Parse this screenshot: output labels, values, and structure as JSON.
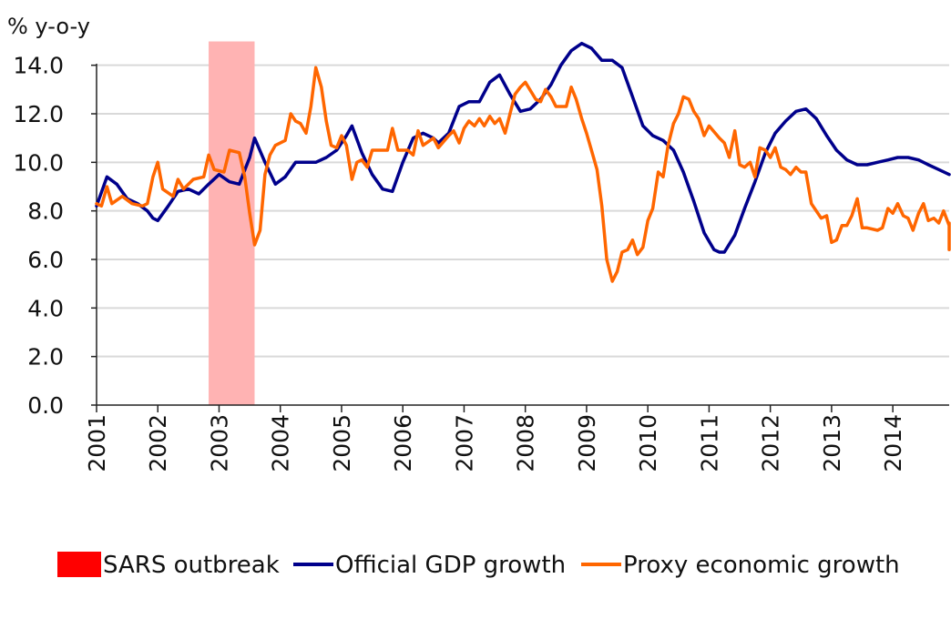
{
  "chart_data": {
    "type": "line",
    "ylabel": "% y-o-y",
    "ylim": [
      0,
      15
    ],
    "yticks": [
      0,
      2,
      4,
      6,
      8,
      10,
      12,
      14
    ],
    "ytick_labels": [
      "0.0",
      "2.0",
      "4.0",
      "6.0",
      "8.0",
      "10.0",
      "12.0",
      "14.0"
    ],
    "xlim": [
      2001,
      2014.92
    ],
    "xticks": [
      2001,
      2002,
      2003,
      2004,
      2005,
      2006,
      2007,
      2008,
      2009,
      2010,
      2011,
      2012,
      2013,
      2014
    ],
    "xtick_labels": [
      "2001",
      "2002",
      "2003",
      "2004",
      "2005",
      "2006",
      "2007",
      "2008",
      "2009",
      "2010",
      "2011",
      "2012",
      "2013",
      "2014"
    ],
    "grid": true,
    "legend_position": "bottom",
    "shaded_regions": [
      {
        "name": "SARS outbreak",
        "x_start": 2002.83,
        "x_end": 2003.58,
        "color": "#ffb3b3",
        "legend_color": "#ff0000"
      }
    ],
    "series": [
      {
        "name": "Official GDP growth",
        "color": "#00008b",
        "points": [
          [
            2001.0,
            8.2
          ],
          [
            2001.17,
            9.4
          ],
          [
            2001.33,
            9.1
          ],
          [
            2001.5,
            8.5
          ],
          [
            2001.67,
            8.3
          ],
          [
            2001.83,
            8.0
          ],
          [
            2001.92,
            7.7
          ],
          [
            2002.0,
            7.6
          ],
          [
            2002.17,
            8.2
          ],
          [
            2002.33,
            8.8
          ],
          [
            2002.5,
            8.9
          ],
          [
            2002.67,
            8.7
          ],
          [
            2002.83,
            9.1
          ],
          [
            2003.0,
            9.5
          ],
          [
            2003.17,
            9.2
          ],
          [
            2003.33,
            9.1
          ],
          [
            2003.5,
            10.2
          ],
          [
            2003.58,
            11.0
          ],
          [
            2003.75,
            10.0
          ],
          [
            2003.92,
            9.1
          ],
          [
            2004.08,
            9.4
          ],
          [
            2004.25,
            10.0
          ],
          [
            2004.42,
            10.0
          ],
          [
            2004.58,
            10.0
          ],
          [
            2004.75,
            10.2
          ],
          [
            2004.92,
            10.5
          ],
          [
            2005.08,
            11.1
          ],
          [
            2005.17,
            11.5
          ],
          [
            2005.33,
            10.4
          ],
          [
            2005.5,
            9.5
          ],
          [
            2005.67,
            8.9
          ],
          [
            2005.83,
            8.8
          ],
          [
            2006.0,
            10.0
          ],
          [
            2006.17,
            11.0
          ],
          [
            2006.33,
            11.2
          ],
          [
            2006.5,
            11.0
          ],
          [
            2006.58,
            10.8
          ],
          [
            2006.75,
            11.2
          ],
          [
            2006.92,
            12.3
          ],
          [
            2007.08,
            12.5
          ],
          [
            2007.25,
            12.5
          ],
          [
            2007.42,
            13.3
          ],
          [
            2007.58,
            13.6
          ],
          [
            2007.75,
            12.8
          ],
          [
            2007.92,
            12.1
          ],
          [
            2008.08,
            12.2
          ],
          [
            2008.25,
            12.6
          ],
          [
            2008.42,
            13.2
          ],
          [
            2008.58,
            14.0
          ],
          [
            2008.75,
            14.6
          ],
          [
            2008.92,
            14.9
          ],
          [
            2009.08,
            14.7
          ],
          [
            2009.25,
            14.2
          ],
          [
            2009.42,
            14.2
          ],
          [
            2009.58,
            13.9
          ],
          [
            2009.75,
            12.7
          ],
          [
            2009.92,
            11.5
          ],
          [
            2010.08,
            11.1
          ],
          [
            2010.25,
            10.9
          ],
          [
            2010.42,
            10.5
          ],
          [
            2010.58,
            9.6
          ],
          [
            2010.75,
            8.4
          ],
          [
            2010.92,
            7.1
          ],
          [
            2011.08,
            6.4
          ],
          [
            2011.17,
            6.3
          ],
          [
            2011.25,
            6.3
          ],
          [
            2011.42,
            7.0
          ],
          [
            2011.58,
            8.1
          ],
          [
            2011.75,
            9.2
          ],
          [
            2011.92,
            10.4
          ],
          [
            2012.08,
            11.2
          ],
          [
            2012.25,
            11.7
          ],
          [
            2012.42,
            12.1
          ],
          [
            2012.58,
            12.2
          ],
          [
            2012.75,
            11.8
          ],
          [
            2012.92,
            11.1
          ],
          [
            2013.08,
            10.5
          ],
          [
            2013.25,
            10.1
          ],
          [
            2013.42,
            9.9
          ],
          [
            2013.58,
            9.9
          ],
          [
            2013.75,
            10.0
          ],
          [
            2013.92,
            10.1
          ],
          [
            2014.08,
            10.2
          ],
          [
            2014.25,
            10.2
          ],
          [
            2014.42,
            10.1
          ],
          [
            2014.58,
            9.9
          ],
          [
            2014.75,
            9.7
          ],
          [
            2014.92,
            9.5
          ]
        ]
      },
      {
        "name": "Proxy economic growth",
        "color": "#ff6600",
        "points": [
          [
            2001.0,
            8.3
          ],
          [
            2001.08,
            8.2
          ],
          [
            2001.17,
            9.0
          ],
          [
            2001.25,
            8.3
          ],
          [
            2001.42,
            8.6
          ],
          [
            2001.58,
            8.3
          ],
          [
            2001.75,
            8.2
          ],
          [
            2001.83,
            8.3
          ],
          [
            2001.92,
            9.4
          ],
          [
            2002.0,
            10.0
          ],
          [
            2002.08,
            8.9
          ],
          [
            2002.25,
            8.6
          ],
          [
            2002.33,
            9.3
          ],
          [
            2002.42,
            8.9
          ],
          [
            2002.58,
            9.3
          ],
          [
            2002.75,
            9.4
          ],
          [
            2002.83,
            10.3
          ],
          [
            2002.92,
            9.7
          ],
          [
            2003.08,
            9.6
          ],
          [
            2003.17,
            10.5
          ],
          [
            2003.33,
            10.4
          ],
          [
            2003.42,
            9.4
          ],
          [
            2003.5,
            7.9
          ],
          [
            2003.58,
            6.6
          ],
          [
            2003.67,
            7.2
          ],
          [
            2003.75,
            9.5
          ],
          [
            2003.83,
            10.3
          ],
          [
            2003.92,
            10.7
          ],
          [
            2004.08,
            10.9
          ],
          [
            2004.17,
            12.0
          ],
          [
            2004.25,
            11.7
          ],
          [
            2004.33,
            11.6
          ],
          [
            2004.42,
            11.2
          ],
          [
            2004.5,
            12.3
          ],
          [
            2004.58,
            13.9
          ],
          [
            2004.67,
            13.1
          ],
          [
            2004.75,
            11.7
          ],
          [
            2004.83,
            10.7
          ],
          [
            2004.92,
            10.6
          ],
          [
            2005.0,
            11.1
          ],
          [
            2005.08,
            10.7
          ],
          [
            2005.17,
            9.3
          ],
          [
            2005.25,
            10.0
          ],
          [
            2005.33,
            10.1
          ],
          [
            2005.42,
            9.8
          ],
          [
            2005.5,
            10.5
          ],
          [
            2005.67,
            10.5
          ],
          [
            2005.75,
            10.5
          ],
          [
            2005.83,
            11.4
          ],
          [
            2005.92,
            10.5
          ],
          [
            2006.08,
            10.5
          ],
          [
            2006.17,
            10.3
          ],
          [
            2006.25,
            11.3
          ],
          [
            2006.33,
            10.7
          ],
          [
            2006.5,
            11.0
          ],
          [
            2006.58,
            10.6
          ],
          [
            2006.75,
            11.1
          ],
          [
            2006.83,
            11.3
          ],
          [
            2006.92,
            10.8
          ],
          [
            2007.0,
            11.4
          ],
          [
            2007.08,
            11.7
          ],
          [
            2007.17,
            11.5
          ],
          [
            2007.25,
            11.8
          ],
          [
            2007.33,
            11.5
          ],
          [
            2007.42,
            11.9
          ],
          [
            2007.5,
            11.6
          ],
          [
            2007.58,
            11.8
          ],
          [
            2007.67,
            11.2
          ],
          [
            2007.75,
            12.0
          ],
          [
            2007.83,
            12.8
          ],
          [
            2007.92,
            13.1
          ],
          [
            2008.0,
            13.3
          ],
          [
            2008.17,
            12.6
          ],
          [
            2008.25,
            12.5
          ],
          [
            2008.33,
            13.0
          ],
          [
            2008.42,
            12.7
          ],
          [
            2008.5,
            12.3
          ],
          [
            2008.58,
            12.3
          ],
          [
            2008.67,
            12.3
          ],
          [
            2008.75,
            13.1
          ],
          [
            2008.83,
            12.6
          ],
          [
            2008.92,
            11.8
          ],
          [
            2009.0,
            11.2
          ],
          [
            2009.08,
            10.5
          ],
          [
            2009.17,
            9.7
          ],
          [
            2009.25,
            8.2
          ],
          [
            2009.33,
            6.0
          ],
          [
            2009.42,
            5.1
          ],
          [
            2009.5,
            5.5
          ],
          [
            2009.58,
            6.3
          ],
          [
            2009.67,
            6.4
          ],
          [
            2009.75,
            6.8
          ],
          [
            2009.83,
            6.2
          ],
          [
            2009.92,
            6.5
          ],
          [
            2010.0,
            7.6
          ],
          [
            2010.08,
            8.1
          ],
          [
            2010.17,
            9.6
          ],
          [
            2010.25,
            9.4
          ],
          [
            2010.33,
            10.7
          ],
          [
            2010.42,
            11.6
          ],
          [
            2010.5,
            12.0
          ],
          [
            2010.58,
            12.7
          ],
          [
            2010.67,
            12.6
          ],
          [
            2010.75,
            12.1
          ],
          [
            2010.83,
            11.8
          ],
          [
            2010.92,
            11.1
          ],
          [
            2011.0,
            11.5
          ],
          [
            2011.17,
            11.0
          ],
          [
            2011.25,
            10.8
          ],
          [
            2011.33,
            10.2
          ],
          [
            2011.42,
            11.3
          ],
          [
            2011.5,
            9.9
          ],
          [
            2011.58,
            9.8
          ],
          [
            2011.67,
            10.0
          ],
          [
            2011.75,
            9.4
          ],
          [
            2011.83,
            10.6
          ],
          [
            2011.92,
            10.5
          ],
          [
            2012.0,
            10.2
          ],
          [
            2012.08,
            10.6
          ],
          [
            2012.17,
            9.8
          ],
          [
            2012.25,
            9.7
          ],
          [
            2012.33,
            9.5
          ],
          [
            2012.42,
            9.8
          ],
          [
            2012.5,
            9.6
          ],
          [
            2012.58,
            9.6
          ],
          [
            2012.67,
            8.3
          ],
          [
            2012.75,
            8.0
          ],
          [
            2012.83,
            7.7
          ],
          [
            2012.92,
            7.8
          ],
          [
            2013.0,
            6.7
          ],
          [
            2013.08,
            6.8
          ],
          [
            2013.17,
            7.4
          ],
          [
            2013.25,
            7.4
          ],
          [
            2013.33,
            7.8
          ],
          [
            2013.42,
            8.5
          ],
          [
            2013.5,
            7.3
          ],
          [
            2013.58,
            7.3
          ],
          [
            2013.75,
            7.2
          ],
          [
            2013.83,
            7.3
          ],
          [
            2013.92,
            8.1
          ],
          [
            2014.0,
            7.9
          ],
          [
            2014.08,
            8.3
          ],
          [
            2014.17,
            7.8
          ],
          [
            2014.25,
            7.7
          ],
          [
            2014.33,
            7.2
          ],
          [
            2014.42,
            7.9
          ],
          [
            2014.5,
            8.3
          ],
          [
            2014.58,
            7.6
          ],
          [
            2014.67,
            7.7
          ],
          [
            2014.75,
            7.5
          ],
          [
            2014.83,
            8.0
          ],
          [
            2014.92,
            7.4
          ],
          [
            2015.0,
            6.4
          ],
          [
            2015.08,
            6.4
          ],
          [
            2015.17,
            7.5
          ]
        ]
      }
    ]
  }
}
